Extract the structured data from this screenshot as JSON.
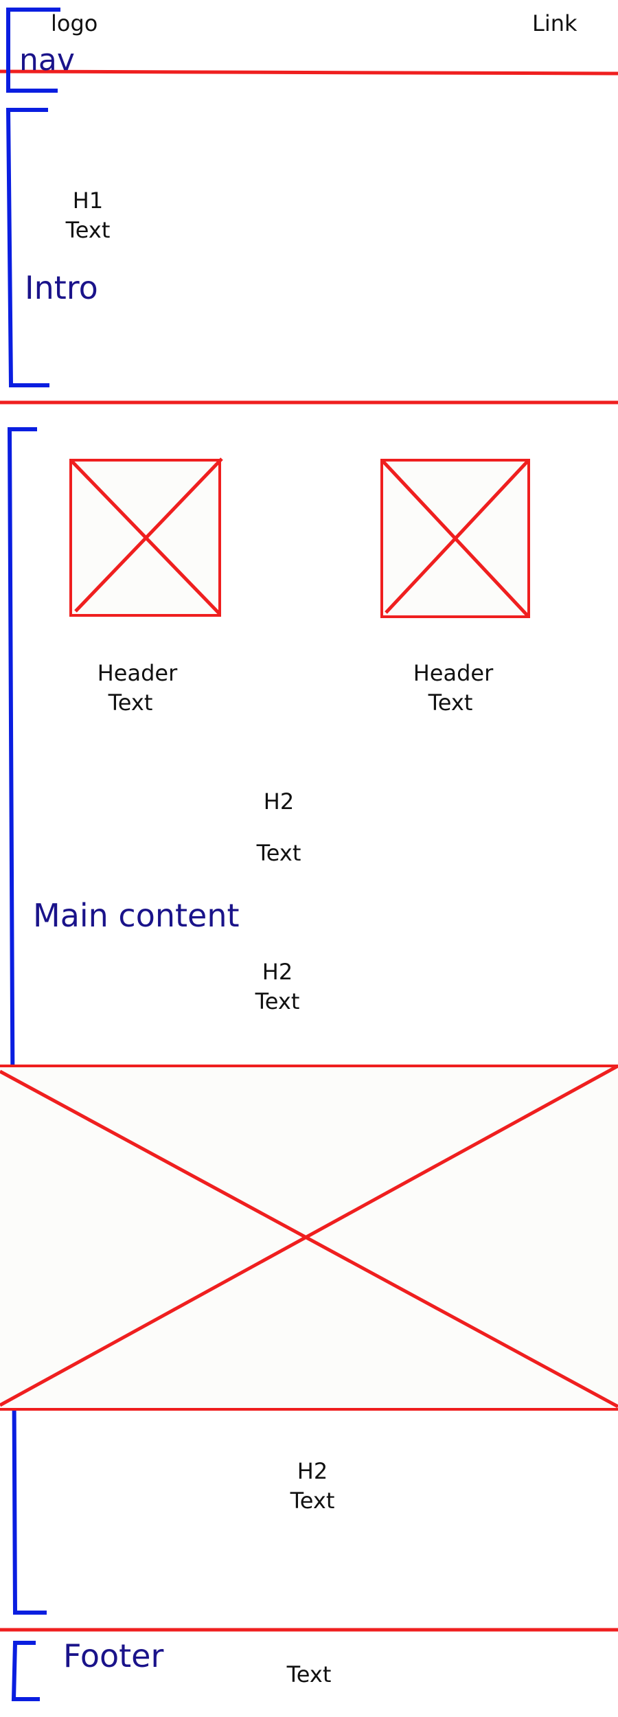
{
  "colors": {
    "bracket": "#0a1ee0",
    "divider": "#ef1f1f",
    "section_label": "#1a138a",
    "placeholder_fill": "#fcfcfa"
  },
  "nav": {
    "logo": "logo",
    "link": "Link",
    "label": "nav"
  },
  "intro": {
    "h1": "H1",
    "text": "Text",
    "label": "Intro"
  },
  "main": {
    "label": "Main content",
    "cards": [
      {
        "header": "Header",
        "text": "Text"
      },
      {
        "header": "Header",
        "text": "Text"
      }
    ],
    "sections": [
      {
        "h2": "H2",
        "text": "Text"
      },
      {
        "h2": "H2",
        "text": "Text"
      },
      {
        "h2": "H2",
        "text": "Text"
      }
    ]
  },
  "footer": {
    "label": "Footer",
    "text": "Text"
  }
}
